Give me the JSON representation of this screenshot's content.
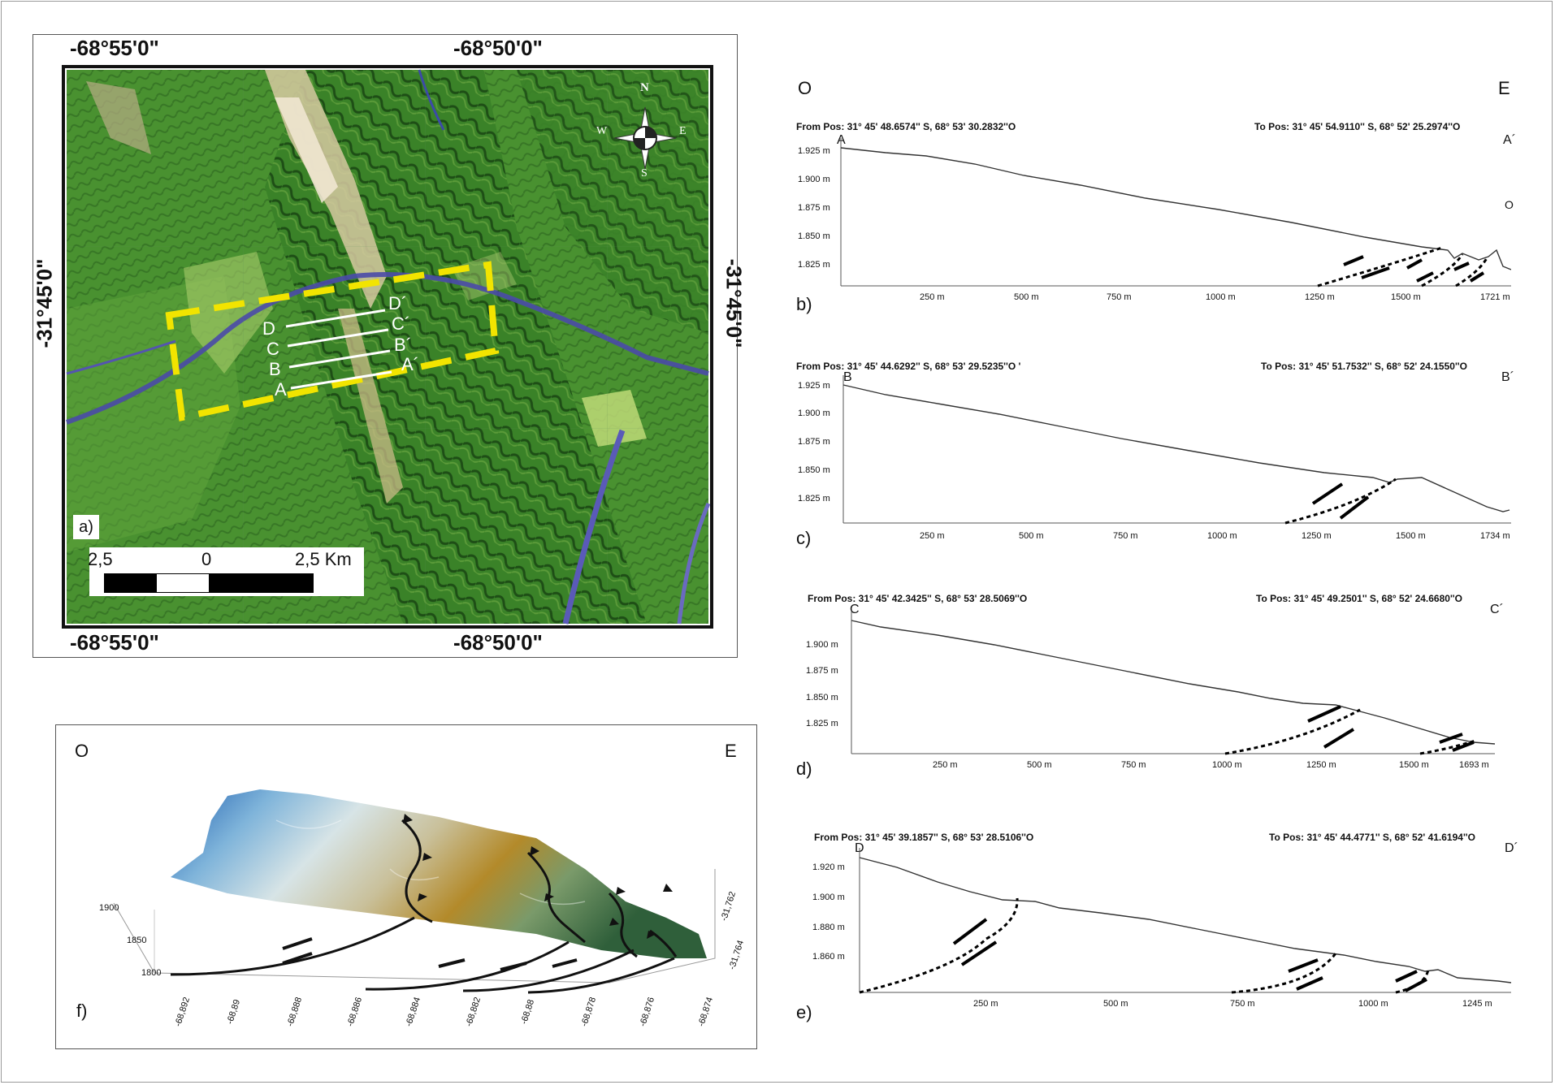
{
  "map": {
    "lon_top_left": "-68°55'0\"",
    "lon_top_right": "-68°50'0\"",
    "lon_bottom_left": "-68°55'0\"",
    "lon_bottom_right": "-68°50'0\"",
    "lat_left": "-31°45'0\"",
    "lat_right": "-31°45'0\"",
    "panel_label": "a)",
    "profile_labels": [
      "D",
      "C",
      "B",
      "A"
    ],
    "profile_end_labels": [
      "D´",
      "C´",
      "B´",
      "A´"
    ],
    "compass": {
      "n": "N",
      "s": "S",
      "w": "W",
      "e": "E"
    },
    "scale": {
      "left": "2,5",
      "mid": "0",
      "right": "2,5 Km"
    },
    "colors": {
      "box": "#f2e400",
      "vegetation": "#3f8a2a",
      "river": "#4a4aa8"
    }
  },
  "profiles_header": {
    "west": "O",
    "east": "E"
  },
  "profiles": [
    {
      "panel": "b)",
      "from": "From Pos: 31° 45' 48.6574'' S, 68° 53' 30.2832''O",
      "to": "To Pos: 31° 45' 54.9110'' S, 68° 52' 25.2974''O",
      "start_label": "A",
      "end_label": "A´",
      "stray": "O",
      "y_ticks": [
        "1.925 m",
        "1.900 m",
        "1.875 m",
        "1.850 m",
        "1.825 m"
      ],
      "x_ticks": [
        "250 m",
        "500 m",
        "750 m",
        "1000 m",
        "1250 m",
        "1500 m",
        "1721 m"
      ]
    },
    {
      "panel": "c)",
      "from": "From Pos: 31° 45' 44.6292'' S, 68° 53' 29.5235''O '",
      "to": "To Pos: 31° 45' 51.7532'' S, 68° 52' 24.1550''O",
      "start_label": "B",
      "end_label": "B´",
      "y_ticks": [
        "1.925 m",
        "1.900 m",
        "1.875 m",
        "1.850 m",
        "1.825 m"
      ],
      "x_ticks": [
        "250 m",
        "500 m",
        "750 m",
        "1000 m",
        "1250 m",
        "1500 m",
        "1734 m"
      ]
    },
    {
      "panel": "d)",
      "from": "From Pos: 31° 45' 42.3425'' S, 68° 53' 28.5069''O",
      "to": "To Pos: 31° 45' 49.2501'' S, 68° 52' 24.6680''O",
      "start_label": "C",
      "end_label": "C´",
      "y_ticks": [
        "1.900 m",
        "1.875 m",
        "1.850 m",
        "1.825 m"
      ],
      "x_ticks": [
        "250 m",
        "500 m",
        "750 m",
        "1000 m",
        "1250 m",
        "1500 m",
        "1693 m"
      ]
    },
    {
      "panel": "e)",
      "from": "From Pos: 31° 45' 39.1857'' S, 68° 53' 28.5106''O",
      "to": "To Pos: 31° 45' 44.4771'' S, 68° 52' 41.6194''O",
      "start_label": "D",
      "end_label": "D´",
      "y_ticks": [
        "1.920 m",
        "1.900 m",
        "1.880 m",
        "1.860 m"
      ],
      "x_ticks": [
        "250 m",
        "500 m",
        "750 m",
        "1000 m",
        "1245 m"
      ]
    }
  ],
  "block": {
    "panel": "f)",
    "west": "O",
    "east": "E",
    "z_ticks": [
      "1900",
      "1850",
      "1800"
    ],
    "x_ticks": [
      "-68,892",
      "-68,89",
      "-68,888",
      "-68,886",
      "-68,884",
      "-68,882",
      "-68,88",
      "-68,878",
      "-68,876",
      "-68,874"
    ],
    "y_ticks": [
      "-31,762",
      "-31,764"
    ]
  }
}
